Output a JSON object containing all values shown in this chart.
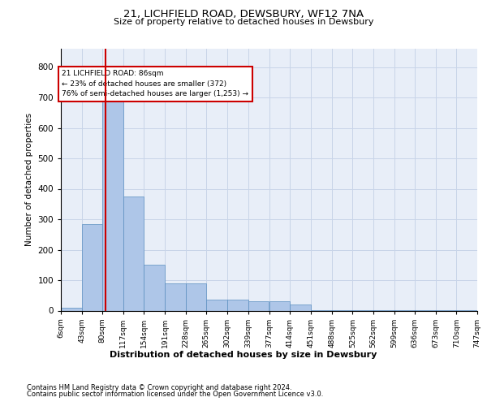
{
  "title_line1": "21, LICHFIELD ROAD, DEWSBURY, WF12 7NA",
  "title_line2": "Size of property relative to detached houses in Dewsbury",
  "xlabel": "Distribution of detached houses by size in Dewsbury",
  "ylabel": "Number of detached properties",
  "footnote1": "Contains HM Land Registry data © Crown copyright and database right 2024.",
  "footnote2": "Contains public sector information licensed under the Open Government Licence v3.0.",
  "annotation_line1": "21 LICHFIELD ROAD: 86sqm",
  "annotation_line2": "← 23% of detached houses are smaller (372)",
  "annotation_line3": "76% of semi-detached houses are larger (1,253) →",
  "property_size": 86,
  "bin_edges": [
    6,
    43,
    80,
    117,
    154,
    191,
    228,
    265,
    302,
    339,
    377,
    414,
    451,
    488,
    525,
    562,
    599,
    636,
    673,
    710,
    747
  ],
  "bar_heights": [
    10,
    285,
    800,
    375,
    150,
    90,
    90,
    35,
    35,
    30,
    30,
    20,
    2,
    2,
    2,
    2,
    2,
    2,
    2,
    2
  ],
  "bar_color": "#aec6e8",
  "bar_edge_color": "#5a8fc0",
  "grid_color": "#c8d4e8",
  "background_color": "#e8eef8",
  "red_line_color": "#cc0000",
  "ylim": [
    0,
    860
  ],
  "yticks": [
    0,
    100,
    200,
    300,
    400,
    500,
    600,
    700,
    800
  ]
}
